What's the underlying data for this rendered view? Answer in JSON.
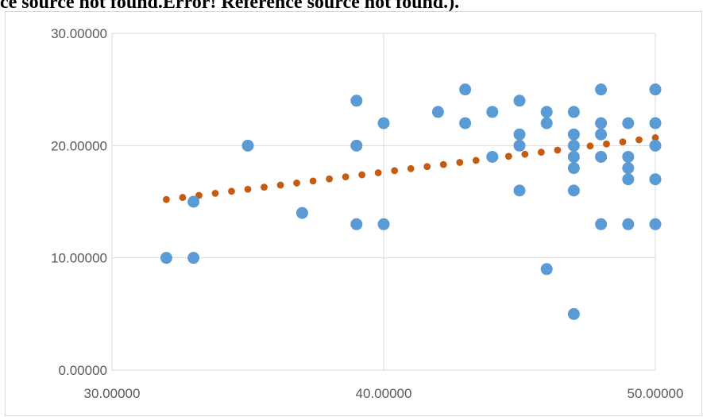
{
  "document": {
    "header_text": "ce source not found.Error! Reference source not found.)."
  },
  "chart_data": {
    "type": "scatter",
    "title": "",
    "xlabel": "",
    "ylabel": "",
    "xlim": [
      30,
      50
    ],
    "ylim": [
      0,
      30
    ],
    "x_ticks": [
      "30.00000",
      "40.00000",
      "50.00000"
    ],
    "y_ticks": [
      "0.00000",
      "10.00000",
      "20.00000",
      "30.00000"
    ],
    "grid": true,
    "legend": "none",
    "colors": {
      "points": "#5b9bd5",
      "trendline": "#c55a11",
      "grid": "#d9d9d9",
      "tick_text": "#595959"
    },
    "series": [
      {
        "values": [
          [
            32,
            10
          ],
          [
            33,
            10
          ],
          [
            33,
            15
          ],
          [
            35,
            20
          ],
          [
            37,
            14
          ],
          [
            39,
            24
          ],
          [
            39,
            20
          ],
          [
            39,
            13
          ],
          [
            40,
            22
          ],
          [
            40,
            13
          ],
          [
            42,
            23
          ],
          [
            43,
            25
          ],
          [
            43,
            22
          ],
          [
            44,
            23
          ],
          [
            44,
            19
          ],
          [
            45,
            24
          ],
          [
            45,
            21
          ],
          [
            45,
            20
          ],
          [
            45,
            16
          ],
          [
            46,
            23
          ],
          [
            46,
            22
          ],
          [
            46,
            9
          ],
          [
            47,
            23
          ],
          [
            47,
            21
          ],
          [
            47,
            20
          ],
          [
            47,
            19
          ],
          [
            47,
            18
          ],
          [
            47,
            16
          ],
          [
            47,
            5
          ],
          [
            48,
            25
          ],
          [
            48,
            22
          ],
          [
            48,
            21
          ],
          [
            48,
            19
          ],
          [
            48,
            13
          ],
          [
            49,
            22
          ],
          [
            49,
            19
          ],
          [
            49,
            18
          ],
          [
            49,
            17
          ],
          [
            49,
            13
          ],
          [
            50,
            25
          ],
          [
            50,
            22
          ],
          [
            50,
            20
          ],
          [
            50,
            17
          ],
          [
            50,
            13
          ]
        ]
      }
    ],
    "trendline": {
      "type": "linear",
      "style": "dotted",
      "x_range": [
        32,
        50
      ],
      "start_y": 15.2,
      "end_y": 20.7
    }
  }
}
